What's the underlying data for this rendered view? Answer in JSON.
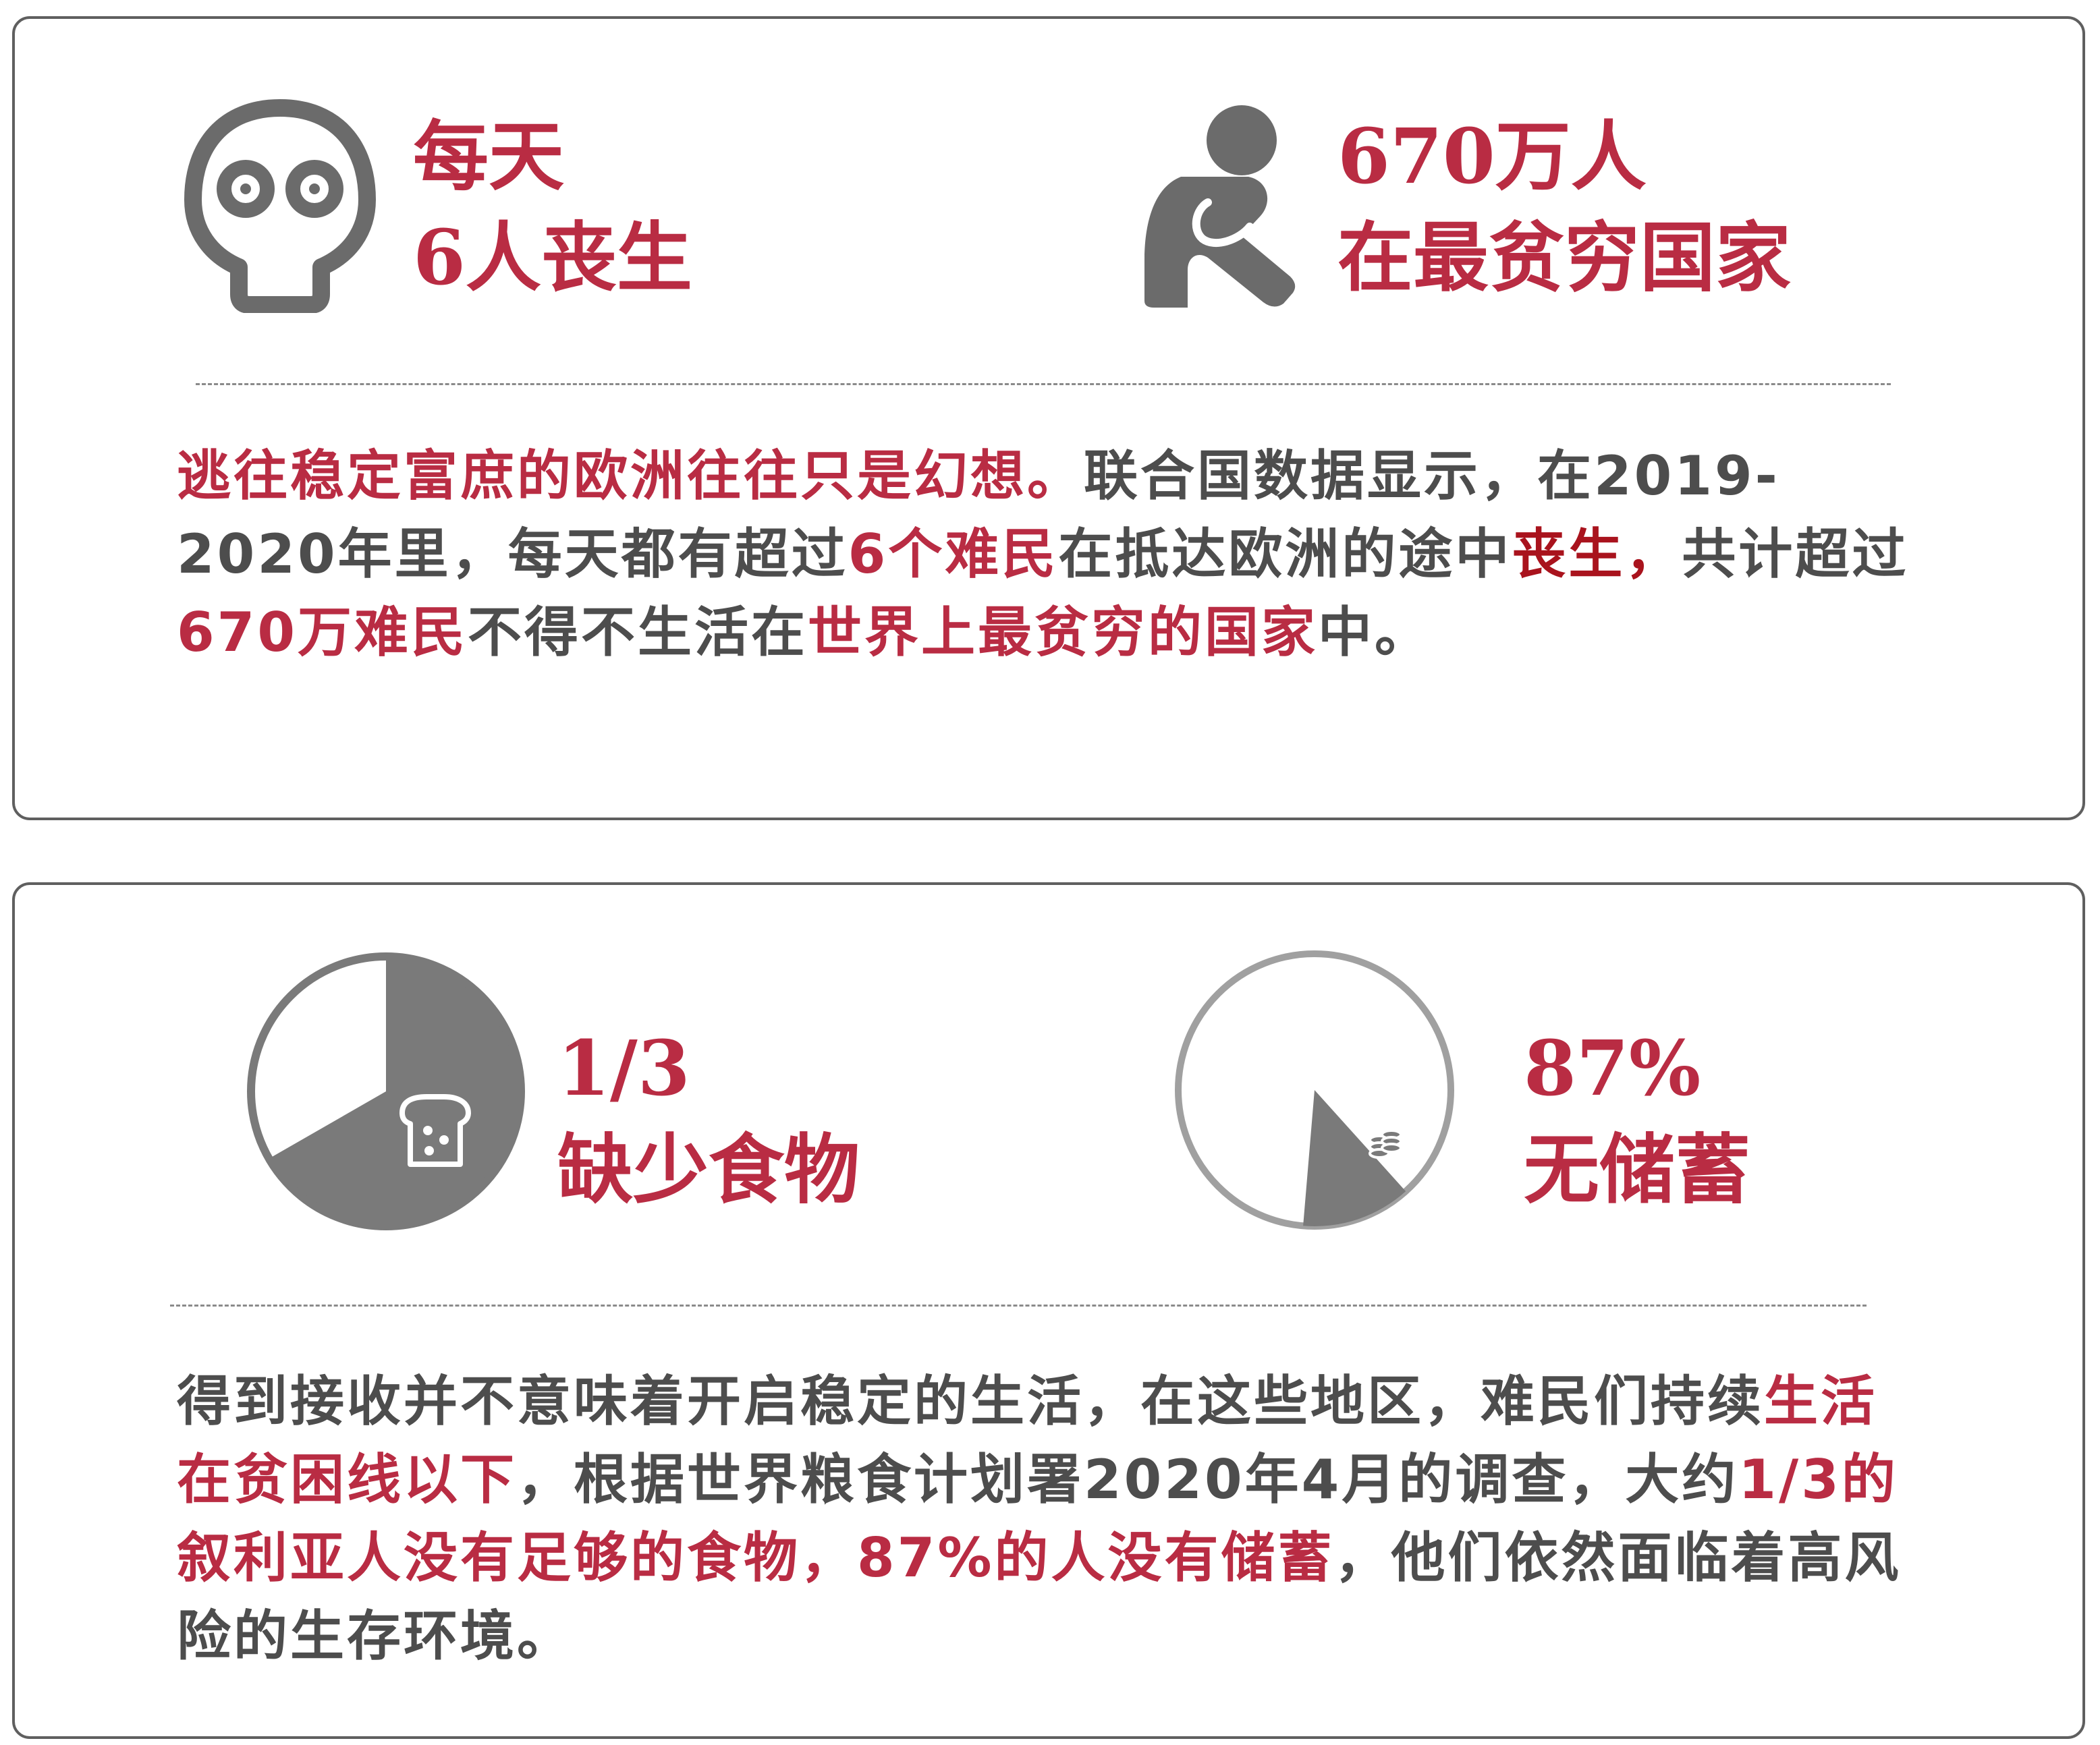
{
  "colors": {
    "accent": "#b92c43",
    "text": "#4d4d4d",
    "icon": "#6b6b6b"
  },
  "card1": {
    "stat_deaths": {
      "icon": "skull-icon",
      "line1": "每天",
      "line2": "6人丧生"
    },
    "stat_poorest": {
      "icon": "sitting-person-icon",
      "line1": "670万人",
      "line2": "在最贫穷国家"
    },
    "paragraph": [
      {
        "text": "逃往稳定富庶的欧洲往往只是幻想。",
        "style": "red"
      },
      {
        "text": "联合国数据显示，在2019-2020年里，每天都有超过",
        "style": "normal"
      },
      {
        "text": "6个难民",
        "style": "red"
      },
      {
        "text": "在抵达欧洲的途中",
        "style": "normal"
      },
      {
        "text": "丧生，",
        "style": "dark-red"
      },
      {
        "text": "共计超过",
        "style": "normal"
      },
      {
        "text": "670万难民",
        "style": "red"
      },
      {
        "text": "不得不生活在",
        "style": "normal"
      },
      {
        "text": "世界上最贫穷的国家",
        "style": "red"
      },
      {
        "text": "中。",
        "style": "normal"
      }
    ]
  },
  "card2": {
    "stat_food": {
      "icon": "bread-icon",
      "line1": "1/3",
      "line2": "缺少食物",
      "fraction": 0.667
    },
    "stat_savings": {
      "icon": "coins-icon",
      "line1": "87%",
      "line2": "无储蓄",
      "fraction": 0.13
    },
    "paragraph": [
      {
        "text": "得到接收并不意味着开启稳定的生活，在这些地区，难民们持续",
        "style": "normal"
      },
      {
        "text": "生活在贫困线以下",
        "style": "red"
      },
      {
        "text": "，根据世界粮食计划署2020年4月的调查，大约",
        "style": "normal"
      },
      {
        "text": "1/3的叙利亚人没有足够的食物，87%的人没有储蓄",
        "style": "red"
      },
      {
        "text": "，他们依然面临着高风险的生存环境。",
        "style": "normal"
      }
    ]
  }
}
